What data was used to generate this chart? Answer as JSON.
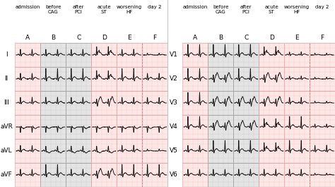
{
  "left_panel": {
    "rows": [
      "I",
      "II",
      "III",
      "aVR",
      "aVL",
      "aVF"
    ],
    "cols": [
      "A",
      "B",
      "C",
      "D",
      "E",
      "F"
    ],
    "headers": [
      "admission",
      "before\nCAG",
      "after\nPCI",
      "acute\nST",
      "worsening\nHF",
      "day 2"
    ]
  },
  "right_panel": {
    "rows": [
      "V1",
      "V2",
      "V3",
      "V4",
      "V5",
      "V6"
    ],
    "cols": [
      "A",
      "B",
      "C",
      "D",
      "E",
      "F"
    ],
    "headers": [
      "admission",
      "before\nCAG",
      "after\nPCI",
      "acute\nST",
      "worsening\nHF",
      "day 2"
    ]
  },
  "col_bgs_left": [
    "#fde8e8",
    "#e4e4e4",
    "#e4e4e4",
    "#fde8e8",
    "#fde8e8",
    "#fde8e8"
  ],
  "col_bgs_right": [
    "#fde8e8",
    "#e4e4e4",
    "#e4e4e4",
    "#fde8e8",
    "#fde8e8",
    "#fde8e8"
  ],
  "ecg_color": "#111111",
  "figure_bg": "#ffffff",
  "header_fontsize": 5.0,
  "label_fontsize": 6.5,
  "col_letter_fontsize": 6.5
}
